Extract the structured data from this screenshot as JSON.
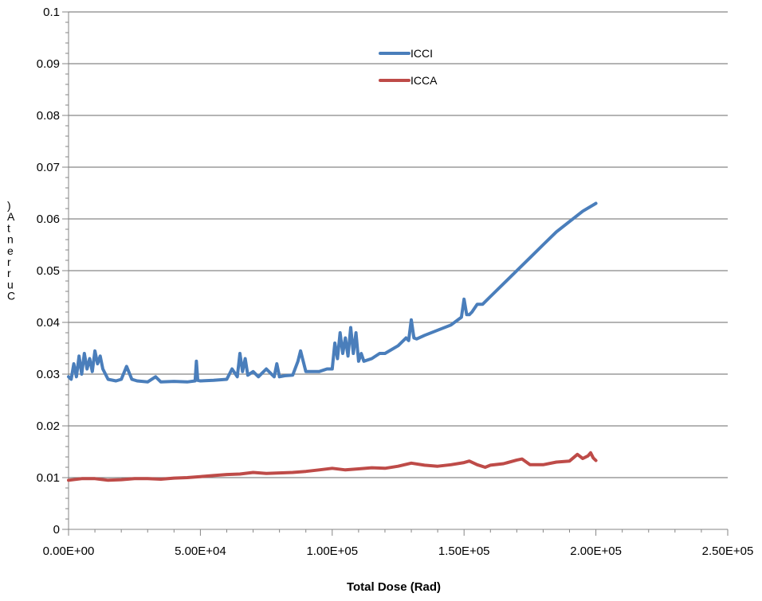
{
  "chart_data": {
    "type": "line",
    "title": "",
    "xlabel": "Total Dose (Rad)",
    "ylabel": "Current (A)",
    "ylabel_visible_fragment": ")\nA\nt\nn\ne\nr\nr\nu\nC",
    "xlim": [
      0,
      250000
    ],
    "ylim": [
      0,
      0.1
    ],
    "x_ticks": [
      0,
      50000,
      100000,
      150000,
      200000,
      250000
    ],
    "x_tick_labels": [
      "0.00E+00",
      "5.00E+04",
      "1.00E+05",
      "1.50E+05",
      "2.00E+05",
      "2.50E+05"
    ],
    "y_ticks": [
      0,
      0.01,
      0.02,
      0.03,
      0.04,
      0.05,
      0.06,
      0.07,
      0.08,
      0.09,
      0.1
    ],
    "y_tick_labels": [
      "0",
      "0.01",
      "0.02",
      "0.03",
      "0.04",
      "0.05",
      "0.06",
      "0.07",
      "0.08",
      "0.09",
      "0.1"
    ],
    "grid": "horizontal",
    "legend_position": "top-center",
    "series": [
      {
        "name": "ICCI",
        "color": "#4a7ebb",
        "x": [
          0,
          1000,
          2000,
          3000,
          4000,
          5000,
          6000,
          7000,
          8000,
          9000,
          10000,
          11000,
          12000,
          13000,
          15000,
          18000,
          20000,
          22000,
          24000,
          26000,
          30000,
          33000,
          35000,
          40000,
          45000,
          48000,
          48500,
          49000,
          50000,
          55000,
          60000,
          62000,
          64000,
          65000,
          66000,
          67000,
          68000,
          70000,
          72000,
          75000,
          78000,
          79000,
          80000,
          82000,
          85000,
          87000,
          88000,
          89000,
          90000,
          95000,
          98000,
          100000,
          101000,
          102000,
          103000,
          104000,
          105000,
          106000,
          107000,
          108000,
          109000,
          110000,
          111000,
          112000,
          115000,
          118000,
          120000,
          125000,
          128000,
          129000,
          130000,
          131000,
          132000,
          135000,
          140000,
          145000,
          149000,
          150000,
          151000,
          152000,
          153000,
          155000,
          157000,
          160000,
          165000,
          170000,
          175000,
          180000,
          185000,
          190000,
          195000,
          200000
        ],
        "y": [
          0.0295,
          0.029,
          0.032,
          0.0295,
          0.0335,
          0.03,
          0.034,
          0.031,
          0.033,
          0.0305,
          0.0345,
          0.032,
          0.0335,
          0.031,
          0.029,
          0.0287,
          0.029,
          0.0315,
          0.029,
          0.0287,
          0.0285,
          0.0295,
          0.0285,
          0.0286,
          0.0285,
          0.0287,
          0.0325,
          0.0288,
          0.0287,
          0.0288,
          0.029,
          0.031,
          0.0295,
          0.034,
          0.0305,
          0.033,
          0.0298,
          0.0305,
          0.0295,
          0.031,
          0.0295,
          0.032,
          0.0295,
          0.0297,
          0.0298,
          0.0325,
          0.0345,
          0.0325,
          0.0305,
          0.0305,
          0.031,
          0.031,
          0.036,
          0.033,
          0.038,
          0.034,
          0.037,
          0.0335,
          0.039,
          0.034,
          0.038,
          0.0325,
          0.034,
          0.0325,
          0.033,
          0.034,
          0.034,
          0.0355,
          0.037,
          0.0365,
          0.0405,
          0.037,
          0.0368,
          0.0375,
          0.0385,
          0.0395,
          0.041,
          0.0445,
          0.0415,
          0.0415,
          0.042,
          0.0435,
          0.0435,
          0.045,
          0.0475,
          0.05,
          0.0525,
          0.055,
          0.0575,
          0.0595,
          0.0615,
          0.063
        ]
      },
      {
        "name": "ICCA",
        "color": "#be4b48",
        "x": [
          0,
          5000,
          10000,
          15000,
          20000,
          25000,
          30000,
          35000,
          40000,
          45000,
          50000,
          55000,
          60000,
          65000,
          70000,
          75000,
          80000,
          85000,
          90000,
          95000,
          100000,
          105000,
          110000,
          115000,
          120000,
          125000,
          130000,
          135000,
          140000,
          145000,
          150000,
          152000,
          155000,
          158000,
          160000,
          165000,
          170000,
          172000,
          175000,
          180000,
          185000,
          190000,
          193000,
          195000,
          197000,
          198000,
          199000,
          200000
        ],
        "y": [
          0.0095,
          0.0098,
          0.0098,
          0.0095,
          0.0096,
          0.0098,
          0.0098,
          0.0097,
          0.0099,
          0.01,
          0.0102,
          0.0104,
          0.0106,
          0.0107,
          0.011,
          0.0108,
          0.0109,
          0.011,
          0.0112,
          0.0115,
          0.0118,
          0.0115,
          0.0117,
          0.0119,
          0.0118,
          0.0122,
          0.0128,
          0.0124,
          0.0122,
          0.0125,
          0.0129,
          0.0132,
          0.0125,
          0.012,
          0.0124,
          0.0127,
          0.0134,
          0.0136,
          0.0125,
          0.0125,
          0.013,
          0.0132,
          0.0145,
          0.0137,
          0.0142,
          0.0148,
          0.0138,
          0.0133
        ]
      }
    ]
  }
}
